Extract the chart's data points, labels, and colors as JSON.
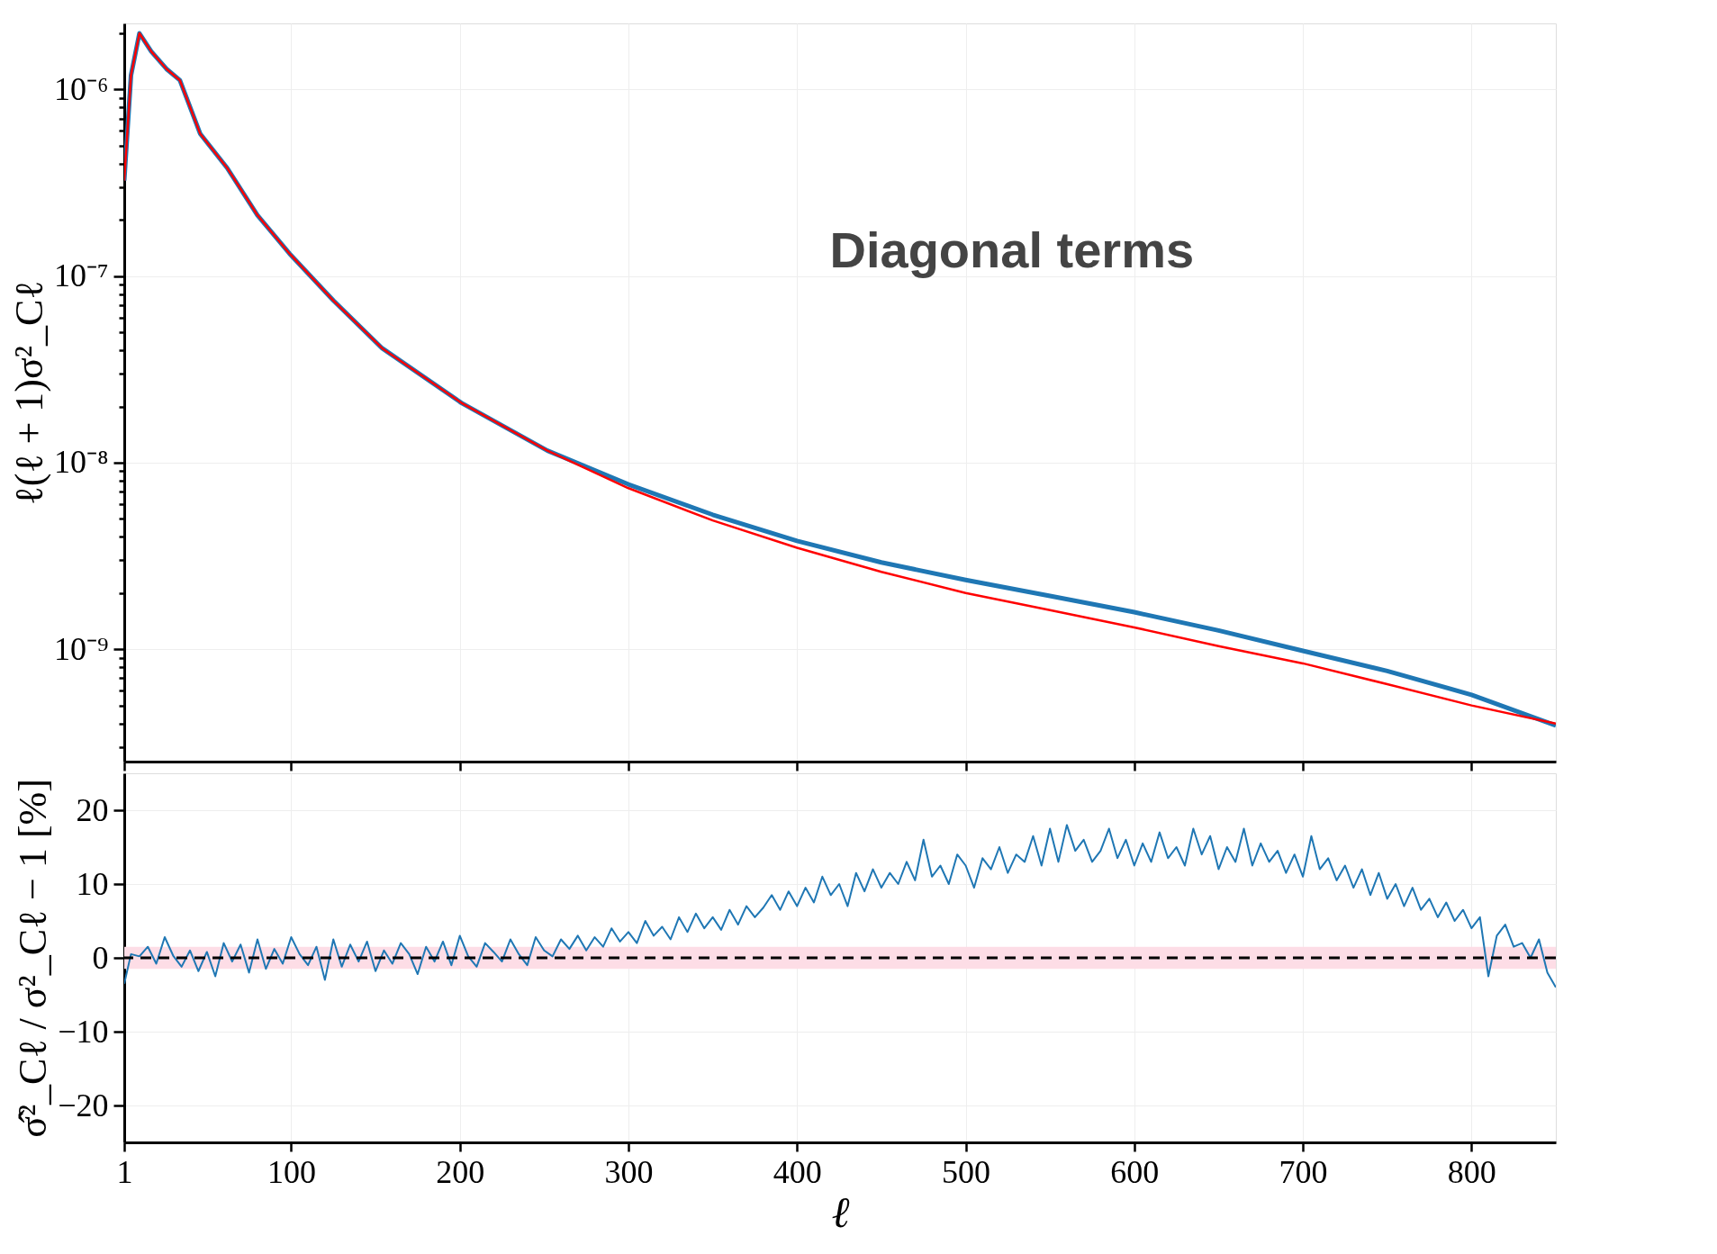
{
  "chart_data": [
    {
      "type": "line",
      "ylabel": "ℓ(ℓ + 1)σ²_Cℓ",
      "annotations": [
        "Diagonal terms"
      ],
      "log": "y",
      "grid": true,
      "tick_labels": "y",
      "line_style": "solid",
      "marker": "none",
      "xlim": [
        1,
        850
      ],
      "xticks": [
        1,
        100,
        200,
        300,
        400,
        500,
        600,
        700,
        800
      ],
      "ylim": [
        2.5e-10,
        2.26e-06
      ],
      "yticks": [
        {
          "value": 3e-10,
          "label": null
        },
        {
          "value": 4e-10,
          "label": null
        },
        {
          "value": 5e-10,
          "label": null
        },
        {
          "value": 6e-10,
          "label": null
        },
        {
          "value": 7e-10,
          "label": null
        },
        {
          "value": 8e-10,
          "label": null
        },
        {
          "value": 9e-10,
          "label": null
        },
        {
          "value": 1e-09,
          "label": "10⁻⁹"
        },
        {
          "value": 2e-09,
          "label": null
        },
        {
          "value": 3e-09,
          "label": null
        },
        {
          "value": 4e-09,
          "label": null
        },
        {
          "value": 5e-09,
          "label": null
        },
        {
          "value": 6e-09,
          "label": null
        },
        {
          "value": 7e-09,
          "label": null
        },
        {
          "value": 8e-09,
          "label": null
        },
        {
          "value": 9e-09,
          "label": null
        },
        {
          "value": 1e-08,
          "label": "10⁻⁸"
        },
        {
          "value": 2e-08,
          "label": null
        },
        {
          "value": 3e-08,
          "label": null
        },
        {
          "value": 4e-08,
          "label": null
        },
        {
          "value": 5e-08,
          "label": null
        },
        {
          "value": 6e-08,
          "label": null
        },
        {
          "value": 7e-08,
          "label": null
        },
        {
          "value": 8e-08,
          "label": null
        },
        {
          "value": 9e-08,
          "label": null
        },
        {
          "value": 1e-07,
          "label": "10⁻⁷"
        },
        {
          "value": 2e-07,
          "label": null
        },
        {
          "value": 3e-07,
          "label": null
        },
        {
          "value": 4e-07,
          "label": null
        },
        {
          "value": 5e-07,
          "label": null
        },
        {
          "value": 6e-07,
          "label": null
        },
        {
          "value": 7e-07,
          "label": null
        },
        {
          "value": 8e-07,
          "label": null
        },
        {
          "value": 9e-07,
          "label": null
        },
        {
          "value": 1e-06,
          "label": "10⁻⁶"
        },
        {
          "value": 2e-06,
          "label": null
        }
      ],
      "series": [
        {
          "color": "#1f77b4",
          "x": [
            1,
            5,
            10,
            17,
            26,
            34,
            46,
            62,
            80,
            99,
            125,
            154,
            201,
            252,
            300,
            350,
            400,
            450,
            500,
            550,
            600,
            650,
            700,
            750,
            800,
            850
          ],
          "values": [
            3.25e-07,
            1.19e-06,
            2e-06,
            1.6e-06,
            1.29e-06,
            1.12e-06,
            5.8e-07,
            3.8e-07,
            2.12e-07,
            1.32e-07,
            7.4e-08,
            4.1e-08,
            2.09e-08,
            1.16e-08,
            7.65e-09,
            5.26e-09,
            3.81e-09,
            2.92e-09,
            2.35e-09,
            1.93e-09,
            1.58e-09,
            1.26e-09,
            9.8e-10,
            7.65e-10,
            5.7e-10,
            3.9e-10
          ]
        },
        {
          "color": "#ff0000",
          "x": [
            1,
            5,
            10,
            17,
            26,
            34,
            46,
            62,
            80,
            99,
            125,
            154,
            201,
            252,
            300,
            350,
            400,
            450,
            500,
            550,
            600,
            650,
            700,
            750,
            800,
            850
          ],
          "values": [
            3.25e-07,
            1.19e-06,
            2e-06,
            1.6e-06,
            1.29e-06,
            1.12e-06,
            5.8e-07,
            3.8e-07,
            2.12e-07,
            1.32e-07,
            7.4e-08,
            4.1e-08,
            2.09e-08,
            1.16e-08,
            7.3e-09,
            4.9e-09,
            3.5e-09,
            2.6e-09,
            2e-09,
            1.62e-09,
            1.31e-09,
            1.04e-09,
            8.4e-10,
            6.5e-10,
            5e-10,
            4e-10
          ]
        }
      ]
    },
    {
      "type": "line",
      "xlabel": "ℓ",
      "ylabel": "σ̂²_Cℓ / σ²_Cℓ − 1 [%]",
      "grid": true,
      "line_style": "solid",
      "marker": "none",
      "xlim": [
        1,
        850
      ],
      "xticks": [
        1,
        100,
        200,
        300,
        400,
        500,
        600,
        700,
        800
      ],
      "ylim": [
        -25,
        25
      ],
      "yticks": [
        {
          "value": -20,
          "label": "−20"
        },
        {
          "value": -10,
          "label": "−10"
        },
        0,
        10,
        20
      ],
      "ref_lines": [
        {
          "axis": "y",
          "value": 0,
          "color": "#000000",
          "line_style": "dashed"
        }
      ],
      "bands": [
        {
          "axis": "y",
          "from": -1.5,
          "to": 1.5,
          "color": "#fddde6"
        }
      ],
      "series": [
        {
          "color": "#1f77b4",
          "x": [
            1,
            5,
            10,
            15,
            20,
            25,
            30,
            35,
            40,
            45,
            50,
            55,
            60,
            65,
            70,
            75,
            80,
            85,
            90,
            95,
            100,
            105,
            110,
            115,
            120,
            125,
            130,
            135,
            140,
            145,
            150,
            155,
            160,
            165,
            170,
            175,
            180,
            185,
            190,
            195,
            200,
            205,
            210,
            215,
            220,
            225,
            230,
            235,
            240,
            245,
            250,
            255,
            260,
            265,
            270,
            275,
            280,
            285,
            290,
            295,
            300,
            305,
            310,
            315,
            320,
            325,
            330,
            335,
            340,
            345,
            350,
            355,
            360,
            365,
            370,
            375,
            380,
            385,
            390,
            395,
            400,
            405,
            410,
            415,
            420,
            425,
            430,
            435,
            440,
            445,
            450,
            455,
            460,
            465,
            470,
            475,
            480,
            485,
            490,
            495,
            500,
            505,
            510,
            515,
            520,
            525,
            530,
            535,
            540,
            545,
            550,
            555,
            560,
            565,
            570,
            575,
            580,
            585,
            590,
            595,
            600,
            605,
            610,
            615,
            620,
            625,
            630,
            635,
            640,
            645,
            650,
            655,
            660,
            665,
            670,
            675,
            680,
            685,
            690,
            695,
            700,
            705,
            710,
            715,
            720,
            725,
            730,
            735,
            740,
            745,
            750,
            755,
            760,
            765,
            770,
            775,
            780,
            785,
            790,
            795,
            800,
            805,
            810,
            815,
            820,
            825,
            830,
            835,
            840,
            845,
            850
          ],
          "values": [
            -3.5,
            0.5,
            0.2,
            1.5,
            -0.8,
            2.8,
            0.3,
            -1.2,
            1.0,
            -1.8,
            0.8,
            -2.5,
            2.0,
            -0.5,
            1.8,
            -2.0,
            2.5,
            -1.5,
            1.2,
            -0.8,
            2.8,
            0.5,
            -1.0,
            1.5,
            -3.0,
            2.5,
            -1.2,
            1.8,
            -0.5,
            2.2,
            -1.8,
            1.0,
            -0.8,
            2.0,
            0.5,
            -2.2,
            1.5,
            -0.5,
            2.2,
            -1.0,
            3.0,
            0.2,
            -1.2,
            2.0,
            0.8,
            -0.5,
            2.5,
            0.5,
            -1.0,
            2.8,
            1.0,
            0.2,
            2.5,
            1.2,
            3.0,
            1.0,
            2.8,
            1.5,
            4.0,
            2.2,
            3.5,
            2.0,
            5.0,
            3.0,
            4.2,
            2.5,
            5.5,
            3.5,
            6.0,
            4.0,
            5.5,
            3.8,
            6.5,
            4.5,
            7.0,
            5.5,
            6.8,
            8.5,
            6.5,
            9.0,
            7.0,
            9.5,
            7.5,
            11.0,
            8.5,
            10.0,
            7.0,
            11.5,
            9.0,
            12.0,
            9.5,
            11.5,
            10.0,
            13.0,
            10.5,
            16.0,
            11.0,
            12.5,
            10.0,
            14.0,
            12.5,
            9.5,
            13.5,
            12.0,
            15.0,
            11.5,
            14.0,
            13.0,
            16.5,
            12.5,
            17.5,
            13.0,
            18.0,
            14.5,
            16.0,
            13.0,
            14.5,
            17.5,
            13.5,
            16.0,
            12.5,
            15.5,
            13.0,
            17.0,
            13.5,
            15.0,
            12.5,
            17.5,
            14.0,
            16.5,
            12.0,
            15.0,
            13.0,
            17.5,
            12.5,
            15.5,
            13.0,
            14.5,
            11.5,
            14.0,
            11.0,
            16.5,
            12.0,
            13.5,
            10.5,
            12.5,
            9.5,
            12.0,
            8.5,
            11.5,
            8.0,
            10.0,
            7.0,
            9.5,
            6.5,
            8.0,
            5.5,
            7.5,
            5.0,
            6.5,
            4.0,
            5.5,
            -2.5,
            3.0,
            4.5,
            1.5,
            2.0,
            0.0,
            2.5,
            -2.0,
            -4.0
          ]
        }
      ]
    }
  ]
}
